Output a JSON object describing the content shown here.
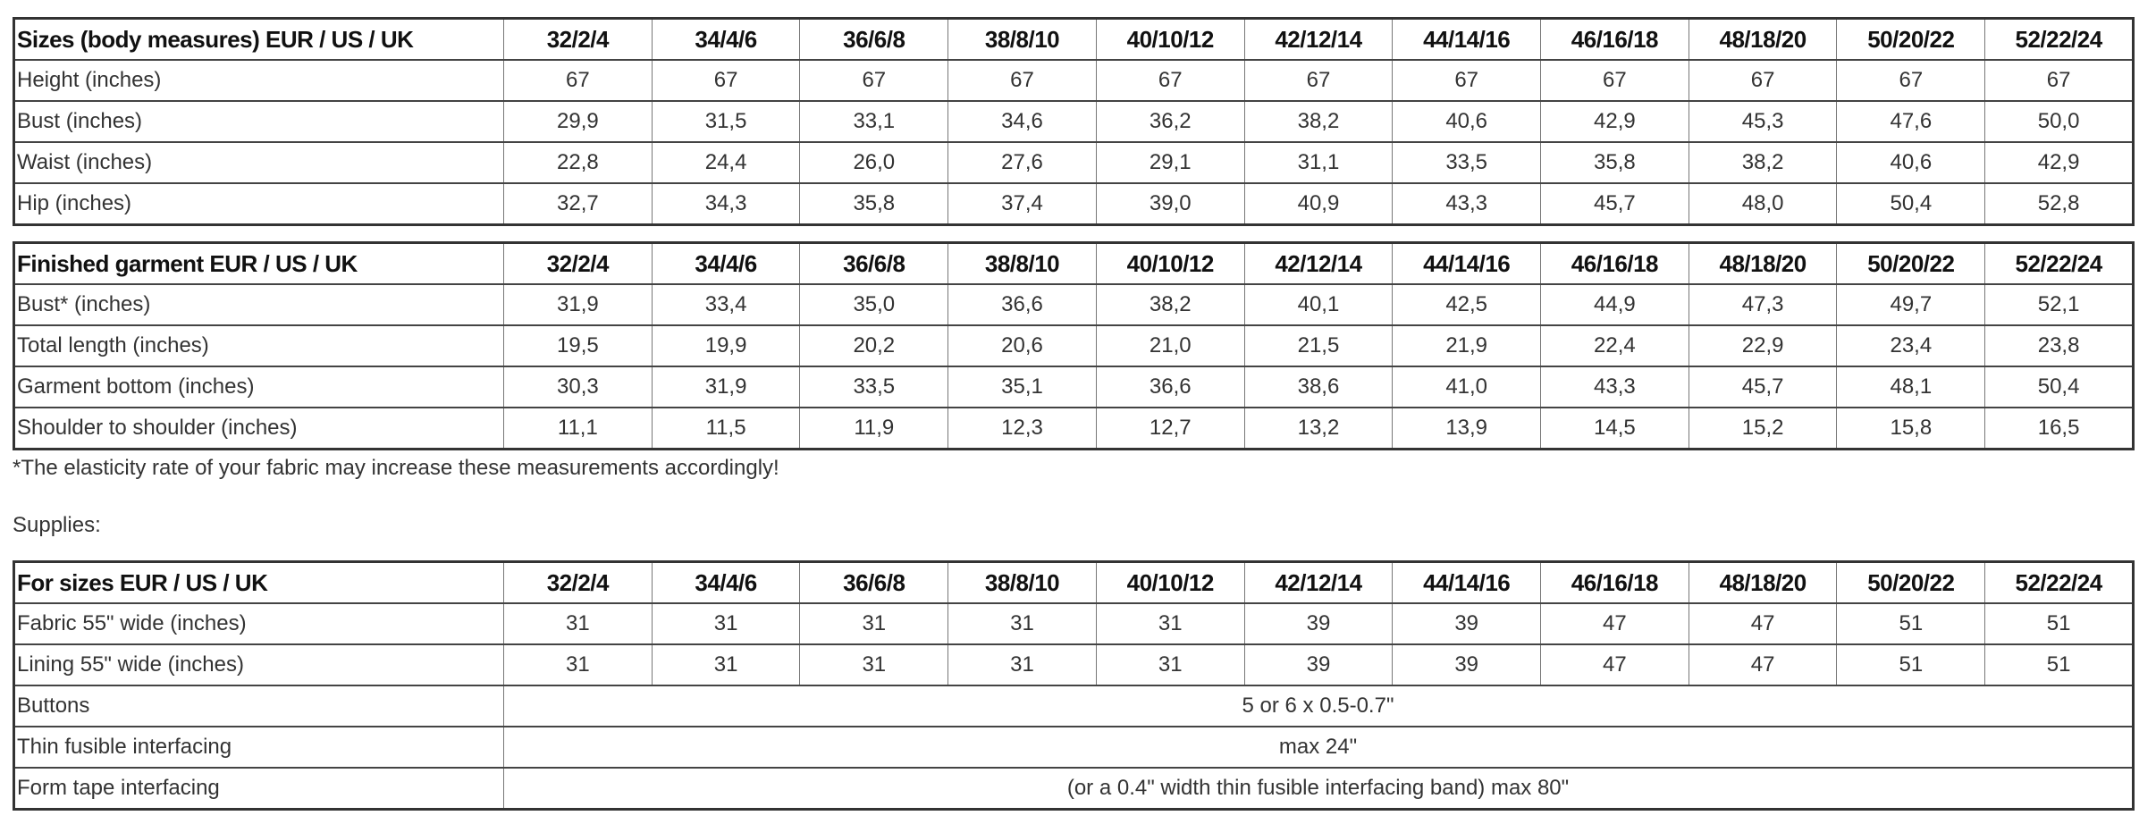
{
  "sizes": [
    "32/2/4",
    "34/4/6",
    "36/6/8",
    "38/8/10",
    "40/10/12",
    "42/12/14",
    "44/14/16",
    "46/16/18",
    "48/18/20",
    "50/20/22",
    "52/22/24"
  ],
  "body_measures": {
    "title": "Sizes (body measures) EUR / US / UK",
    "rows": [
      {
        "label": "Height (inches)",
        "values": [
          "67",
          "67",
          "67",
          "67",
          "67",
          "67",
          "67",
          "67",
          "67",
          "67",
          "67"
        ]
      },
      {
        "label": "Bust (inches)",
        "values": [
          "29,9",
          "31,5",
          "33,1",
          "34,6",
          "36,2",
          "38,2",
          "40,6",
          "42,9",
          "45,3",
          "47,6",
          "50,0"
        ]
      },
      {
        "label": "Waist (inches)",
        "values": [
          "22,8",
          "24,4",
          "26,0",
          "27,6",
          "29,1",
          "31,1",
          "33,5",
          "35,8",
          "38,2",
          "40,6",
          "42,9"
        ]
      },
      {
        "label": "Hip (inches)",
        "values": [
          "32,7",
          "34,3",
          "35,8",
          "37,4",
          "39,0",
          "40,9",
          "43,3",
          "45,7",
          "48,0",
          "50,4",
          "52,8"
        ]
      }
    ]
  },
  "finished_garment": {
    "title": "Finished garment EUR / US / UK",
    "rows": [
      {
        "label": "Bust* (inches)",
        "values": [
          "31,9",
          "33,4",
          "35,0",
          "36,6",
          "38,2",
          "40,1",
          "42,5",
          "44,9",
          "47,3",
          "49,7",
          "52,1"
        ]
      },
      {
        "label": "Total length (inches)",
        "values": [
          "19,5",
          "19,9",
          "20,2",
          "20,6",
          "21,0",
          "21,5",
          "21,9",
          "22,4",
          "22,9",
          "23,4",
          "23,8"
        ]
      },
      {
        "label": "Garment bottom (inches)",
        "values": [
          "30,3",
          "31,9",
          "33,5",
          "35,1",
          "36,6",
          "38,6",
          "41,0",
          "43,3",
          "45,7",
          "48,1",
          "50,4"
        ]
      },
      {
        "label": "Shoulder to shoulder (inches)",
        "values": [
          "11,1",
          "11,5",
          "11,9",
          "12,3",
          "12,7",
          "13,2",
          "13,9",
          "14,5",
          "15,2",
          "15,8",
          "16,5"
        ]
      }
    ]
  },
  "footnote": "*The elasticity rate of your fabric may increase these measurements accordingly!",
  "supplies_label": "Supplies:",
  "supplies": {
    "title": "For sizes EUR / US / UK",
    "rows": [
      {
        "label": "Fabric 55\" wide (inches)",
        "values": [
          "31",
          "31",
          "31",
          "31",
          "31",
          "39",
          "39",
          "47",
          "47",
          "51",
          "51"
        ]
      },
      {
        "label": "Lining 55\" wide (inches)",
        "values": [
          "31",
          "31",
          "31",
          "31",
          "31",
          "39",
          "39",
          "47",
          "47",
          "51",
          "51"
        ]
      },
      {
        "label": "Buttons",
        "span_value": "5 or 6 x 0.5-0.7\""
      },
      {
        "label": "Thin fusible interfacing",
        "span_value": "max 24\""
      },
      {
        "label": "Form tape interfacing",
        "span_value": "(or a 0.4\" width thin fusible interfacing band) max 80\""
      }
    ]
  }
}
